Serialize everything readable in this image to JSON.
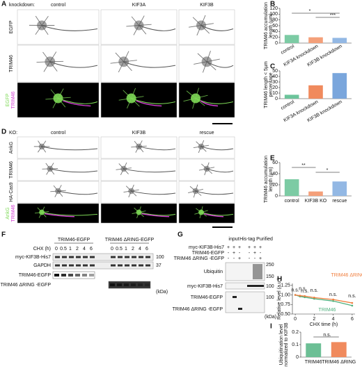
{
  "panel_A": {
    "label": "A",
    "header": "knockdown:",
    "columns": [
      "control",
      "KIF3A",
      "KIF3B"
    ],
    "rows": [
      "EGFP",
      "TRIM46"
    ],
    "merge": [
      "EGFP",
      "TRIM46"
    ]
  },
  "panel_D": {
    "label": "D",
    "header": "KO:",
    "columns": [
      "control",
      "KIF3B",
      "rescue"
    ],
    "rows": [
      "AnkG",
      "TRIM46",
      "HA-Cas9"
    ],
    "merge": [
      "AnkG",
      "TRIM46"
    ]
  },
  "panel_F": {
    "label": "F",
    "groups": [
      "TRIM46-EGFP",
      "TRIM46 ΔRING-EGFP"
    ],
    "chx_label": "CHX (h)",
    "chx": [
      0,
      0.5,
      1,
      2,
      4,
      6
    ],
    "blots": [
      "myc-KIF3B-His7",
      "GAPDH",
      "TRIM46-EGFP",
      "TRIM46 ΔRING -EGFP"
    ],
    "markers": [
      100,
      37
    ],
    "unit": "(kDa)"
  },
  "panel_G": {
    "label": "G",
    "columns": [
      "input",
      "His-tag Purified"
    ],
    "conditions": [
      {
        "name": "myc-KIF3B-His7",
        "signs": [
          "+",
          "+",
          "+",
          "+",
          "+",
          "+"
        ]
      },
      {
        "name": "TRIM46-EGFP",
        "signs": [
          "-",
          "+",
          "-",
          "-",
          "+",
          "-"
        ]
      },
      {
        "name": "TRIM46 ΔRING -EGFP",
        "signs": [
          "-",
          "-",
          "+",
          "-",
          "-",
          "+"
        ]
      }
    ],
    "blots": [
      "Ubiquitin",
      "myc-KIF3B-His7",
      "TRIM46-EGFP",
      "TRIM46 ΔRING -EGFP"
    ],
    "markers": [
      250,
      150,
      100,
      100
    ],
    "unit": "(kDa)"
  },
  "chart_data": [
    {
      "type": "bar",
      "panel": "B",
      "ylabel": [
        "TRIM46 accumulation",
        "length (µm)"
      ],
      "categories": [
        "control",
        "KIF3A knockdown",
        "KIF3B knockdown"
      ],
      "values": [
        28,
        20,
        18
      ],
      "colors": [
        "#7ccba4",
        "#f4a07a",
        "#93b8e4"
      ],
      "ylim": [
        0,
        120
      ],
      "yticks": [
        0,
        20,
        40,
        60,
        80,
        100,
        120
      ],
      "annotations": [
        "*",
        "***"
      ]
    },
    {
      "type": "bar",
      "panel": "C",
      "ylabel": [
        "TRIM46 length < 5µm",
        "percentage"
      ],
      "categories": [
        "control",
        "KIF3A knockdown",
        "KIF3B knockdown"
      ],
      "values": [
        7,
        24,
        46
      ],
      "colors": [
        "#6cc49b",
        "#f08a5d",
        "#7aa6dc"
      ],
      "ylim": [
        0,
        50
      ],
      "yticks": [
        0,
        10,
        20,
        30,
        40,
        50
      ],
      "annotations": []
    },
    {
      "type": "bar",
      "panel": "E",
      "ylabel": [
        "TRIM46 accumulation",
        "length (µm)"
      ],
      "categories": [
        "control",
        "KIF3B KO",
        "rescue"
      ],
      "values": [
        30,
        8,
        26
      ],
      "colors": [
        "#7ccba4",
        "#f4a07a",
        "#93b8e4"
      ],
      "ylim": [
        0,
        60
      ],
      "yticks": [
        0,
        20,
        40,
        60
      ],
      "annotations": [
        "**",
        "*"
      ]
    },
    {
      "type": "line",
      "panel": "H",
      "ylabel": [
        "Relative level (a.u.)"
      ],
      "xlabel": "CHX time (h)",
      "x": [
        0,
        0.5,
        1,
        2,
        4,
        6
      ],
      "series": [
        {
          "name": "TRIM46",
          "color": "#4daf7c",
          "values": [
            1.0,
            0.96,
            0.94,
            0.9,
            0.84,
            0.72
          ]
        },
        {
          "name": "TRIM46 ΔRING",
          "color": "#f07d3c",
          "values": [
            1.0,
            0.98,
            0.97,
            0.93,
            0.88,
            0.79
          ]
        }
      ],
      "xlim": [
        -0.3,
        6.3
      ],
      "xticks": [
        0,
        2,
        4,
        6
      ],
      "ylim": [
        0.5,
        1.3
      ],
      "yticks": [
        {
          "value": 0.5,
          "label": "0.50"
        },
        {
          "value": 0.75,
          "label": "0.75"
        },
        {
          "value": 1.0,
          "label": "1.00"
        },
        {
          "value": 1.25,
          "label": "1.25"
        }
      ],
      "annotations": [
        "n.s.",
        "n.s.",
        "n.s.",
        "n.s.",
        "n.s.",
        "n.s."
      ]
    },
    {
      "type": "bar",
      "panel": "I",
      "ylabel": [
        "Ubiquitination level",
        "normalized to KIF3B"
      ],
      "categories": [
        "TRIM46",
        "TRIM46 ΔRING"
      ],
      "values": [
        0.11,
        0.12
      ],
      "colors": [
        "#6cbf95",
        "#f08a5d"
      ],
      "ylim": [
        0,
        0.2
      ],
      "yticks": [
        0,
        0.1,
        0.2
      ],
      "annotations": [
        "n.s."
      ]
    }
  ]
}
